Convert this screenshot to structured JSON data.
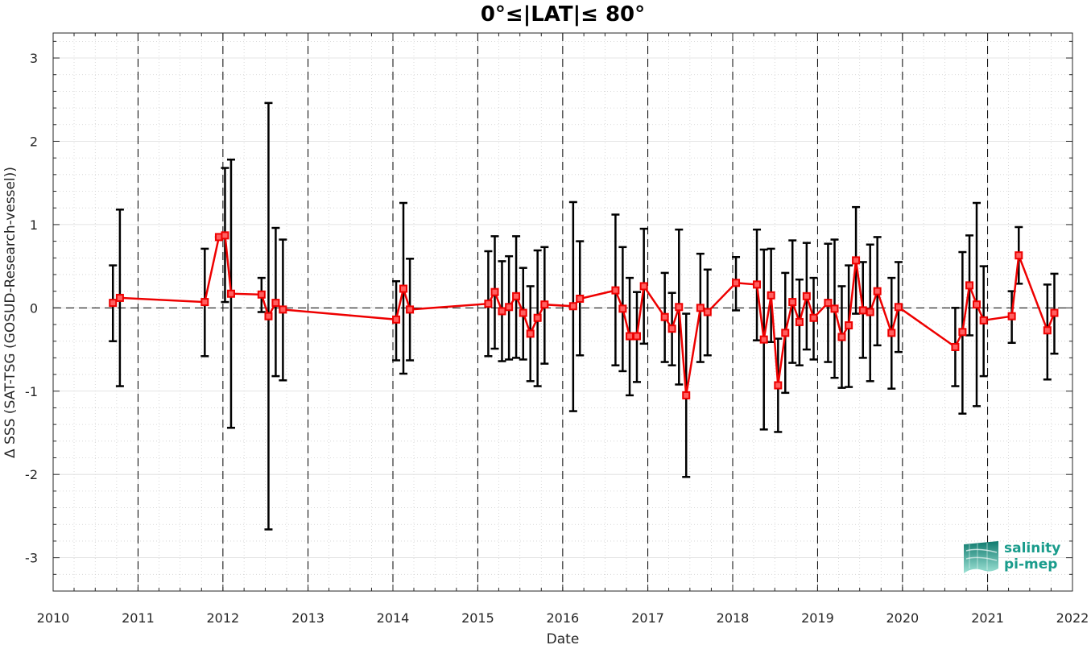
{
  "chart_data": {
    "type": "line",
    "title": "0°≤|LAT|≤ 80°",
    "xlabel": "Date",
    "ylabel": "Δ SSS (SAT-TSG (GOSUD-Research-vessel))",
    "xlim": [
      "2010-01-01",
      "2022-01-01"
    ],
    "ylim": [
      -3.4,
      3.3
    ],
    "x_tick_labels": [
      "2010",
      "2011",
      "2012",
      "2013",
      "2014",
      "2015",
      "2016",
      "2017",
      "2018",
      "2019",
      "2020",
      "2021",
      "2022"
    ],
    "y_tick_labels": [
      "3",
      "2",
      "1",
      "0",
      "-1",
      "-2",
      "-3"
    ],
    "y_ticks": [
      3,
      2,
      1,
      0,
      -1,
      -2,
      -3
    ],
    "grid": true,
    "zero_reference_line": 0,
    "year_boundary_lines": [
      "2011-01-01",
      "2012-01-01",
      "2013-01-01",
      "2014-01-01",
      "2015-01-01",
      "2016-01-01",
      "2017-01-01",
      "2018-01-01",
      "2019-01-01",
      "2020-01-01",
      "2021-01-01"
    ],
    "series": [
      {
        "type": "line-with-errorbars",
        "color": "#ee0000",
        "errorbar_color": "#000000",
        "marker": "square",
        "points": [
          {
            "x": "2010-09-15",
            "y": 0.06,
            "ymin": -0.4,
            "ymax": 0.51
          },
          {
            "x": "2010-10-15",
            "y": 0.12,
            "ymin": -0.94,
            "ymax": 1.18
          },
          {
            "x": "2011-10-15",
            "y": 0.07,
            "ymin": -0.58,
            "ymax": 0.71
          },
          {
            "x": "2011-12-15",
            "y": 0.85,
            "ymin": 0.85,
            "ymax": 0.85
          },
          {
            "x": "2012-01-10",
            "y": 0.87,
            "ymin": 0.07,
            "ymax": 1.68
          },
          {
            "x": "2012-02-05",
            "y": 0.17,
            "ymin": -1.44,
            "ymax": 1.78
          },
          {
            "x": "2012-06-15",
            "y": 0.16,
            "ymin": -0.05,
            "ymax": 0.36
          },
          {
            "x": "2012-07-15",
            "y": -0.1,
            "ymin": -2.66,
            "ymax": 2.46
          },
          {
            "x": "2012-08-15",
            "y": 0.06,
            "ymin": -0.82,
            "ymax": 0.96
          },
          {
            "x": "2012-09-15",
            "y": -0.02,
            "ymin": -0.87,
            "ymax": 0.82
          },
          {
            "x": "2014-01-15",
            "y": -0.14,
            "ymin": -0.63,
            "ymax": 0.32
          },
          {
            "x": "2014-02-15",
            "y": 0.23,
            "ymin": -0.79,
            "ymax": 1.26
          },
          {
            "x": "2014-03-15",
            "y": -0.02,
            "ymin": -0.63,
            "ymax": 0.59
          },
          {
            "x": "2015-02-15",
            "y": 0.05,
            "ymin": -0.58,
            "ymax": 0.68
          },
          {
            "x": "2015-03-15",
            "y": 0.19,
            "ymin": -0.49,
            "ymax": 0.86
          },
          {
            "x": "2015-04-15",
            "y": -0.04,
            "ymin": -0.64,
            "ymax": 0.56
          },
          {
            "x": "2015-05-15",
            "y": 0.01,
            "ymin": -0.62,
            "ymax": 0.62
          },
          {
            "x": "2015-06-15",
            "y": 0.14,
            "ymin": -0.6,
            "ymax": 0.86
          },
          {
            "x": "2015-07-15",
            "y": -0.06,
            "ymin": -0.62,
            "ymax": 0.48
          },
          {
            "x": "2015-08-15",
            "y": -0.31,
            "ymin": -0.88,
            "ymax": 0.26
          },
          {
            "x": "2015-09-15",
            "y": -0.12,
            "ymin": -0.94,
            "ymax": 0.69
          },
          {
            "x": "2015-10-15",
            "y": 0.04,
            "ymin": -0.67,
            "ymax": 0.73
          },
          {
            "x": "2016-02-15",
            "y": 0.02,
            "ymin": -1.24,
            "ymax": 1.27
          },
          {
            "x": "2016-03-15",
            "y": 0.11,
            "ymin": -0.57,
            "ymax": 0.8
          },
          {
            "x": "2016-08-15",
            "y": 0.21,
            "ymin": -0.69,
            "ymax": 1.12
          },
          {
            "x": "2016-09-15",
            "y": -0.01,
            "ymin": -0.76,
            "ymax": 0.73
          },
          {
            "x": "2016-10-15",
            "y": -0.34,
            "ymin": -1.05,
            "ymax": 0.36
          },
          {
            "x": "2016-11-15",
            "y": -0.34,
            "ymin": -0.89,
            "ymax": 0.19
          },
          {
            "x": "2016-12-15",
            "y": 0.26,
            "ymin": -0.43,
            "ymax": 0.95
          },
          {
            "x": "2017-03-15",
            "y": -0.11,
            "ymin": -0.65,
            "ymax": 0.42
          },
          {
            "x": "2017-04-15",
            "y": -0.25,
            "ymin": -0.69,
            "ymax": 0.18
          },
          {
            "x": "2017-05-15",
            "y": 0.01,
            "ymin": -0.92,
            "ymax": 0.94
          },
          {
            "x": "2017-06-15",
            "y": -1.05,
            "ymin": -2.03,
            "ymax": -0.07
          },
          {
            "x": "2017-08-15",
            "y": 0.0,
            "ymin": -0.65,
            "ymax": 0.65
          },
          {
            "x": "2017-09-15",
            "y": -0.05,
            "ymin": -0.57,
            "ymax": 0.46
          },
          {
            "x": "2018-01-15",
            "y": 0.3,
            "ymin": -0.03,
            "ymax": 0.61
          },
          {
            "x": "2018-04-15",
            "y": 0.28,
            "ymin": -0.39,
            "ymax": 0.94
          },
          {
            "x": "2018-05-15",
            "y": -0.38,
            "ymin": -1.46,
            "ymax": 0.7
          },
          {
            "x": "2018-06-15",
            "y": 0.15,
            "ymin": -0.41,
            "ymax": 0.71
          },
          {
            "x": "2018-07-15",
            "y": -0.93,
            "ymin": -1.49,
            "ymax": -0.37
          },
          {
            "x": "2018-08-15",
            "y": -0.3,
            "ymin": -1.02,
            "ymax": 0.42
          },
          {
            "x": "2018-09-15",
            "y": 0.07,
            "ymin": -0.66,
            "ymax": 0.81
          },
          {
            "x": "2018-10-15",
            "y": -0.17,
            "ymin": -0.69,
            "ymax": 0.34
          },
          {
            "x": "2018-11-15",
            "y": 0.14,
            "ymin": -0.5,
            "ymax": 0.78
          },
          {
            "x": "2018-12-15",
            "y": -0.12,
            "ymin": -0.62,
            "ymax": 0.36
          },
          {
            "x": "2019-02-15",
            "y": 0.06,
            "ymin": -0.65,
            "ymax": 0.77
          },
          {
            "x": "2019-03-15",
            "y": -0.01,
            "ymin": -0.84,
            "ymax": 0.82
          },
          {
            "x": "2019-04-15",
            "y": -0.35,
            "ymin": -0.96,
            "ymax": 0.26
          },
          {
            "x": "2019-05-15",
            "y": -0.21,
            "ymin": -0.95,
            "ymax": 0.51
          },
          {
            "x": "2019-06-15",
            "y": 0.57,
            "ymin": -0.07,
            "ymax": 1.21
          },
          {
            "x": "2019-07-15",
            "y": -0.03,
            "ymin": -0.6,
            "ymax": 0.55
          },
          {
            "x": "2019-08-15",
            "y": -0.05,
            "ymin": -0.88,
            "ymax": 0.76
          },
          {
            "x": "2019-09-15",
            "y": 0.2,
            "ymin": -0.45,
            "ymax": 0.85
          },
          {
            "x": "2019-11-15",
            "y": -0.3,
            "ymin": -0.97,
            "ymax": 0.36
          },
          {
            "x": "2019-12-15",
            "y": 0.01,
            "ymin": -0.53,
            "ymax": 0.55
          },
          {
            "x": "2020-08-15",
            "y": -0.47,
            "ymin": -0.94,
            "ymax": 0.0
          },
          {
            "x": "2020-09-15",
            "y": -0.29,
            "ymin": -1.27,
            "ymax": 0.67
          },
          {
            "x": "2020-10-15",
            "y": 0.27,
            "ymin": -0.33,
            "ymax": 0.87
          },
          {
            "x": "2020-11-15",
            "y": 0.04,
            "ymin": -1.18,
            "ymax": 1.26
          },
          {
            "x": "2020-12-15",
            "y": -0.15,
            "ymin": -0.82,
            "ymax": 0.5
          },
          {
            "x": "2021-04-15",
            "y": -0.1,
            "ymin": -0.42,
            "ymax": 0.2
          },
          {
            "x": "2021-05-15",
            "y": 0.63,
            "ymin": 0.29,
            "ymax": 0.97
          },
          {
            "x": "2021-09-15",
            "y": -0.27,
            "ymin": -0.86,
            "ymax": 0.28
          },
          {
            "x": "2021-10-15",
            "y": -0.06,
            "ymin": -0.55,
            "ymax": 0.41
          }
        ]
      }
    ]
  },
  "logo": {
    "line1": "salinity",
    "line2": "pi-mep",
    "colors": [
      "#0f7a6e",
      "#1a9c8c",
      "#3cc4b0",
      "#9fe3d6"
    ]
  }
}
